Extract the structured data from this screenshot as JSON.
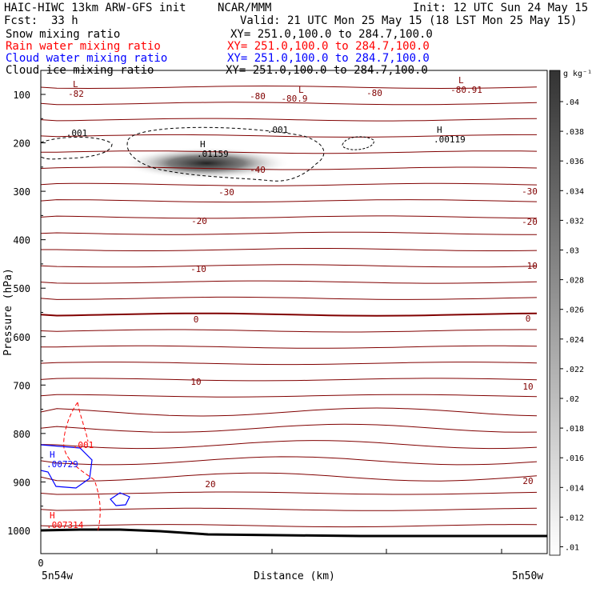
{
  "header": {
    "title": "HAIC-HIWC 13km ARW-GFS init",
    "org": "NCAR/MMM",
    "init": "Init: 12 UTC Sun 24 May 15",
    "fcst_label": "Fcst:",
    "fcst_value": "33 h",
    "valid": "Valid: 21 UTC Mon 25 May 15 (18 LST Mon 25 May 15)"
  },
  "fields": [
    {
      "label": "Snow mixing ratio",
      "xy": "XY= 251.0,100.0 to 284.7,100.0",
      "color": "#000000"
    },
    {
      "label": "Rain water mixing ratio",
      "xy": "XY= 251.0,100.0 to 284.7,100.0",
      "color": "#ff0000"
    },
    {
      "label": "Cloud water mixing ratio",
      "xy": "XY= 251.0,100.0 to 284.7,100.0",
      "color": "#0000ff"
    },
    {
      "label": "Cloud ice mixing ratio",
      "xy": "XY= 251.0,100.0 to 284.7,100.0",
      "color": "#000000"
    }
  ],
  "chart_data": {
    "type": "contour",
    "ylabel": "Pressure (hPa)",
    "xlabel": "Distance (km)",
    "y_ticks": [
      100,
      200,
      300,
      400,
      500,
      600,
      700,
      800,
      900,
      1000
    ],
    "x_tick_label": "0",
    "x_left_label": "5n54w",
    "x_right_label": "5n50w",
    "colorbar": {
      "unit": "g kg⁻¹",
      "ticks": [
        ".04",
        ".038",
        ".036",
        ".034",
        ".032",
        ".03",
        ".028",
        ".026",
        ".024",
        ".022",
        ".02",
        ".018",
        ".016",
        ".014",
        ".012",
        ".01"
      ]
    },
    "temperature_labels": [
      {
        "text": "-82",
        "color": "#800000"
      },
      {
        "text": "-80",
        "color": "#800000"
      },
      {
        "text": "-80.9",
        "color": "#800000"
      },
      {
        "text": "-80",
        "color": "#800000"
      },
      {
        "text": "-80.91",
        "color": "#800000"
      },
      {
        "text": "-40",
        "color": "#800000"
      },
      {
        "text": "-30",
        "color": "#800000"
      },
      {
        "text": "-30",
        "color": "#800000"
      },
      {
        "text": "-20",
        "color": "#800000"
      },
      {
        "text": "-20",
        "color": "#800000"
      },
      {
        "text": "-10",
        "color": "#800000"
      },
      {
        "text": "-10",
        "color": "#800000"
      },
      {
        "text": "0",
        "color": "#800000"
      },
      {
        "text": "0",
        "color": "#800000"
      },
      {
        "text": "10",
        "color": "#800000"
      },
      {
        "text": "10",
        "color": "#800000"
      },
      {
        "text": "20",
        "color": "#800000"
      },
      {
        "text": "20",
        "color": "#800000"
      }
    ],
    "extrema": [
      {
        "mark": "L",
        "value": "",
        "color": "#800000"
      },
      {
        "mark": "L",
        "value": "",
        "color": "#800000"
      },
      {
        "mark": "L",
        "value": "",
        "color": "#800000"
      },
      {
        "mark": "H",
        "value": ".01159",
        "color": "#000000"
      },
      {
        "mark": "H",
        "value": ".00119",
        "color": "#000000"
      },
      {
        "mark": "H",
        "value": ".00729",
        "color": "#0000ff"
      },
      {
        "mark": "H",
        "value": ".007314",
        "color": "#ff0000"
      }
    ],
    "contour_labels": [
      {
        "text": ".001",
        "color": "#000000"
      },
      {
        "text": ".001",
        "color": "#000000"
      },
      {
        "text": ".001",
        "color": "#ff0000"
      }
    ],
    "colors": {
      "temperature": "#800000",
      "rain": "#ff0000",
      "cloud_water": "#0000ff",
      "ice": "#000000"
    }
  }
}
